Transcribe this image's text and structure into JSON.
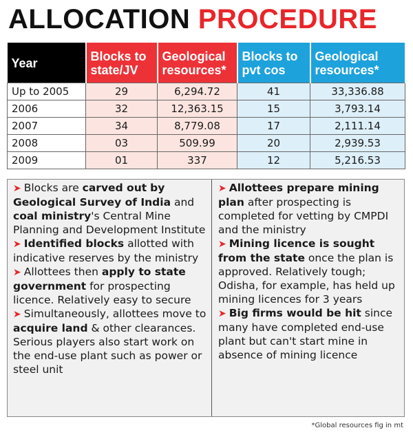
{
  "title": {
    "word1": "ALLOCATION",
    "word2": "PROCEDURE"
  },
  "table": {
    "headers": {
      "year": "Year",
      "blocks_state_l1": "Blocks to",
      "blocks_state_l2": "state/JV",
      "geo_state_l1": "Geological",
      "geo_state_l2": "resources*",
      "blocks_pvt_l1": "Blocks to",
      "blocks_pvt_l2": "pvt cos",
      "geo_pvt_l1": "Geological",
      "geo_pvt_l2": "resources*"
    },
    "rows": [
      {
        "year": "Up to 2005",
        "blocks_state": "29",
        "geo_state": "6,294.72",
        "blocks_pvt": "41",
        "geo_pvt": "33,336.88"
      },
      {
        "year": "2006",
        "blocks_state": "32",
        "geo_state": "12,363.15",
        "blocks_pvt": "15",
        "geo_pvt": "3,793.14"
      },
      {
        "year": "2007",
        "blocks_state": "34",
        "geo_state": "8,779.08",
        "blocks_pvt": "17",
        "geo_pvt": "2,111.14"
      },
      {
        "year": "2008",
        "blocks_state": "03",
        "geo_state": "509.99",
        "blocks_pvt": "20",
        "geo_pvt": "2,939.53"
      },
      {
        "year": "2009",
        "blocks_state": "01",
        "geo_state": "337",
        "blocks_pvt": "12",
        "geo_pvt": "5,216.53"
      }
    ]
  },
  "notes": {
    "arrow": "➤",
    "n1": {
      "t1": "Blocks are ",
      "b1": "carved out",
      "b2": "by Geological Survey of India",
      "t2": " and ",
      "b3": "coal ministry",
      "t3": "'s Central Mine Planning and Development Institute"
    },
    "n2": {
      "b1": "Identified blocks",
      "t1": " allotted with indicative reserves by the ministry"
    },
    "n3": {
      "t1": "Allottees then ",
      "b1": "apply to state government",
      "t2": " for prospecting licence. Relatively easy to secure"
    },
    "n4": {
      "t1": "Simultaneously, allottees move to ",
      "b1": "acquire land",
      "t2": " & other clearances. Serious players also start work on the end-use plant such as power or steel unit"
    },
    "n5": {
      "b1": "Allottees prepare mining plan",
      "t1": " after prospecting is completed for vetting by CMPDI and the ministry"
    },
    "n6": {
      "b1": "Mining licence is sought from the state",
      "t1": " once the plan is approved. Relatively tough; Odisha, for example, has held up mining licences for 3 years"
    },
    "n7": {
      "b1": "Big firms would be hit",
      "t1": " since many have completed end-use plant but can't start mine in absence of mining licence"
    }
  },
  "footnote": "*Global resources fig in mt"
}
